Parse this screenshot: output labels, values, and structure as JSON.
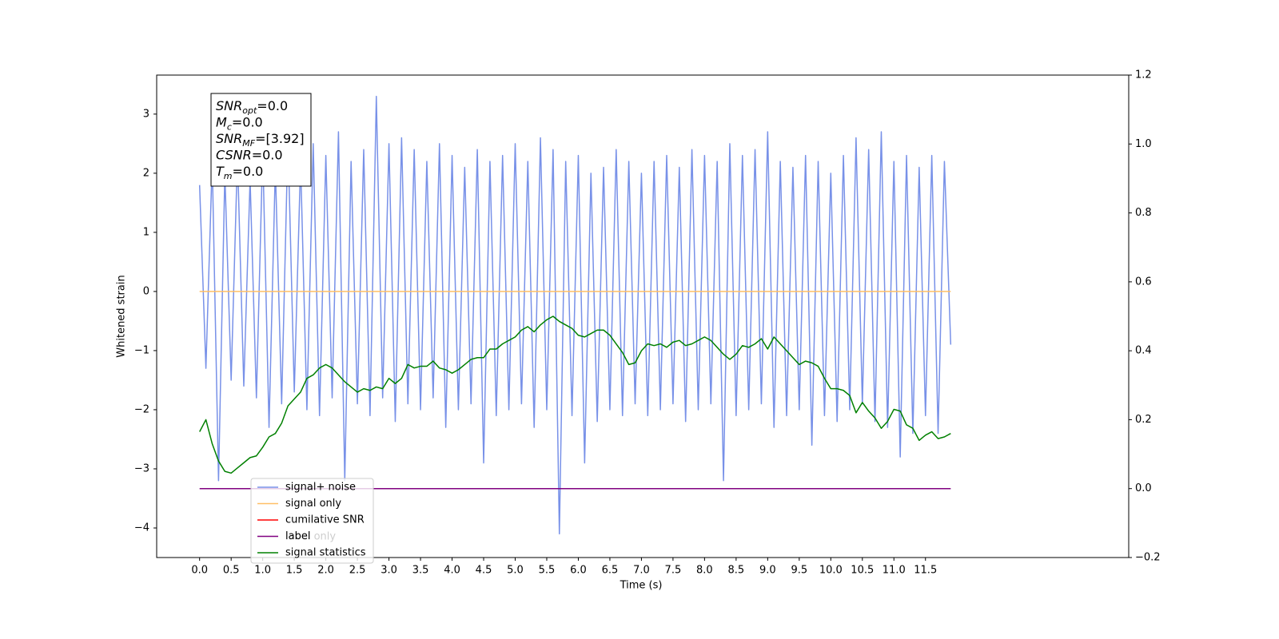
{
  "chart_data": {
    "type": "line",
    "xlabel": "Time (s)",
    "ylabel": "Whitened strain",
    "xlim": [
      -0.68,
      14.72
    ],
    "ylim": [
      -4.5,
      3.66
    ],
    "y2lim": [
      -0.2,
      1.2
    ],
    "xticks": [
      {
        "value": 0,
        "label": "0.0"
      },
      0.5,
      {
        "value": 1,
        "label": "1.0"
      },
      1.5,
      {
        "value": 2,
        "label": "2.0"
      },
      2.5,
      {
        "value": 3,
        "label": "3.0"
      },
      3.5,
      {
        "value": 4,
        "label": "4.0"
      },
      4.5,
      {
        "value": 5,
        "label": "5.0"
      },
      5.5,
      {
        "value": 6,
        "label": "6.0"
      },
      6.5,
      {
        "value": 7,
        "label": "7.0"
      },
      7.5,
      {
        "value": 8,
        "label": "8.0"
      },
      8.5,
      {
        "value": 9,
        "label": "9.0"
      },
      9.5,
      {
        "value": 10,
        "label": "10.0"
      },
      10.5,
      {
        "value": 11,
        "label": "11.0"
      },
      11.5
    ],
    "yticks": [
      {
        "value": -4,
        "label": "−4"
      },
      {
        "value": -3,
        "label": "−3"
      },
      {
        "value": -2,
        "label": "−2"
      },
      {
        "value": -1,
        "label": "−1"
      },
      0,
      1,
      2,
      3
    ],
    "y2ticks": [
      {
        "value": -0.2,
        "label": "−0.2"
      },
      {
        "value": 0,
        "label": "0.0"
      },
      0.2,
      0.4,
      0.6,
      0.8,
      {
        "value": 1,
        "label": "1.0"
      },
      1.2
    ],
    "x": [
      0,
      0.1,
      0.2,
      0.3,
      0.4,
      0.5,
      0.6,
      0.7,
      0.8,
      0.9,
      1,
      1.1,
      1.2,
      1.3,
      1.4,
      1.5,
      1.6,
      1.7,
      1.8,
      1.9,
      2,
      2.1,
      2.2,
      2.3,
      2.4,
      2.5,
      2.6,
      2.7,
      2.8,
      2.9,
      3,
      3.1,
      3.2,
      3.3,
      3.4,
      3.5,
      3.6,
      3.7,
      3.8,
      3.9,
      4,
      4.1,
      4.2,
      4.3,
      4.4,
      4.5,
      4.6,
      4.7,
      4.8,
      4.9,
      5,
      5.1,
      5.2,
      5.3,
      5.4,
      5.5,
      5.6,
      5.7,
      5.8,
      5.9,
      6,
      6.1,
      6.2,
      6.3,
      6.4,
      6.5,
      6.6,
      6.7,
      6.8,
      6.9,
      7,
      7.1,
      7.2,
      7.3,
      7.4,
      7.5,
      7.6,
      7.7,
      7.8,
      7.9,
      8,
      8.1,
      8.2,
      8.3,
      8.4,
      8.5,
      8.6,
      8.7,
      8.8,
      8.9,
      9,
      9.1,
      9.2,
      9.3,
      9.4,
      9.5,
      9.6,
      9.7,
      9.8,
      9.9,
      10,
      10.1,
      10.2,
      10.3,
      10.4,
      10.5,
      10.6,
      10.7,
      10.8,
      10.9,
      11,
      11.1,
      11.2,
      11.3,
      11.4,
      11.5,
      11.6,
      11.7,
      11.8,
      11.9
    ],
    "series": [
      {
        "name": "signal+ noise",
        "color": "#7891e8",
        "values": [
          1.8,
          -1.3,
          2.2,
          -3.2,
          2.0,
          -1.5,
          2.3,
          -1.6,
          1.9,
          -1.8,
          2.4,
          -2.3,
          2.1,
          -1.9,
          2.6,
          -1.7,
          2.2,
          -2.0,
          2.5,
          -2.1,
          2.3,
          -1.8,
          2.7,
          -3.2,
          2.2,
          -1.9,
          2.4,
          -2.1,
          3.3,
          -1.8,
          2.5,
          -2.2,
          2.6,
          -1.9,
          2.4,
          -2.0,
          2.2,
          -1.8,
          2.5,
          -2.3,
          2.3,
          -2.0,
          2.1,
          -1.9,
          2.4,
          -2.9,
          2.2,
          -2.1,
          2.3,
          -2.0,
          2.5,
          -1.9,
          2.2,
          -2.3,
          2.6,
          -2.0,
          2.4,
          -4.1,
          2.2,
          -2.1,
          2.3,
          -2.9,
          2.0,
          -2.2,
          2.1,
          -2.0,
          2.4,
          -2.1,
          2.2,
          -1.9,
          2.0,
          -2.1,
          2.2,
          -2.0,
          2.3,
          -1.9,
          2.1,
          -2.2,
          2.4,
          -2.0,
          2.3,
          -1.9,
          2.2,
          -3.2,
          2.5,
          -2.1,
          2.3,
          -2.0,
          2.4,
          -1.9,
          2.7,
          -2.3,
          2.2,
          -2.1,
          2.1,
          -2.0,
          2.3,
          -2.6,
          2.2,
          -2.1,
          2.0,
          -2.2,
          2.3,
          -2.0,
          2.6,
          -1.9,
          2.4,
          -2.2,
          2.7,
          -2.3,
          2.2,
          -2.8,
          2.3,
          -2.4,
          2.1,
          -2.1,
          2.3,
          -2.4,
          2.2,
          -0.9
        ]
      },
      {
        "name": "signal only",
        "color": "#ffbf66",
        "x": [
          0,
          11.9
        ],
        "values": [
          0,
          0
        ]
      },
      {
        "name": "cumilative SNR",
        "color": "#ff0000",
        "x": [],
        "values": []
      },
      {
        "name": "label",
        "color": "#800080",
        "axis": "y2",
        "x": [
          0,
          11.9
        ],
        "values": [
          0,
          0
        ]
      },
      {
        "name": "signal statistics",
        "color": "#008000",
        "axis": "y2",
        "values": [
          0.165,
          0.2,
          0.13,
          0.08,
          0.05,
          0.045,
          0.06,
          0.075,
          0.09,
          0.095,
          0.12,
          0.15,
          0.16,
          0.19,
          0.24,
          0.26,
          0.28,
          0.32,
          0.33,
          0.35,
          0.36,
          0.35,
          0.33,
          0.31,
          0.295,
          0.28,
          0.29,
          0.285,
          0.295,
          0.29,
          0.32,
          0.305,
          0.32,
          0.36,
          0.35,
          0.355,
          0.355,
          0.37,
          0.35,
          0.345,
          0.335,
          0.345,
          0.36,
          0.375,
          0.38,
          0.38,
          0.405,
          0.405,
          0.42,
          0.43,
          0.44,
          0.46,
          0.47,
          0.455,
          0.475,
          0.49,
          0.5,
          0.485,
          0.475,
          0.465,
          0.445,
          0.44,
          0.45,
          0.46,
          0.46,
          0.445,
          0.42,
          0.395,
          0.36,
          0.365,
          0.4,
          0.42,
          0.415,
          0.42,
          0.41,
          0.425,
          0.43,
          0.415,
          0.42,
          0.43,
          0.44,
          0.43,
          0.41,
          0.39,
          0.375,
          0.39,
          0.415,
          0.41,
          0.42,
          0.435,
          0.405,
          0.44,
          0.42,
          0.4,
          0.38,
          0.36,
          0.37,
          0.365,
          0.355,
          0.32,
          0.29,
          0.29,
          0.285,
          0.27,
          0.22,
          0.25,
          0.225,
          0.205,
          0.175,
          0.195,
          0.23,
          0.225,
          0.185,
          0.175,
          0.14,
          0.155,
          0.165,
          0.145,
          0.15,
          0.16
        ]
      }
    ],
    "legend": "lower left",
    "annotations": [
      "label only"
    ],
    "textbox": [
      {
        "symbol": "SNR",
        "subscript": "opt",
        "value": "=0.0"
      },
      {
        "symbol": "M",
        "subscript": "c",
        "value": "=0.0"
      },
      {
        "symbol": "SNR",
        "subscript": "MF",
        "value": "=[3.92]"
      },
      {
        "symbol": "CSNR",
        "value": "=0.0"
      },
      {
        "symbol": "T",
        "subscript": "m",
        "value": "=0.0"
      }
    ]
  }
}
